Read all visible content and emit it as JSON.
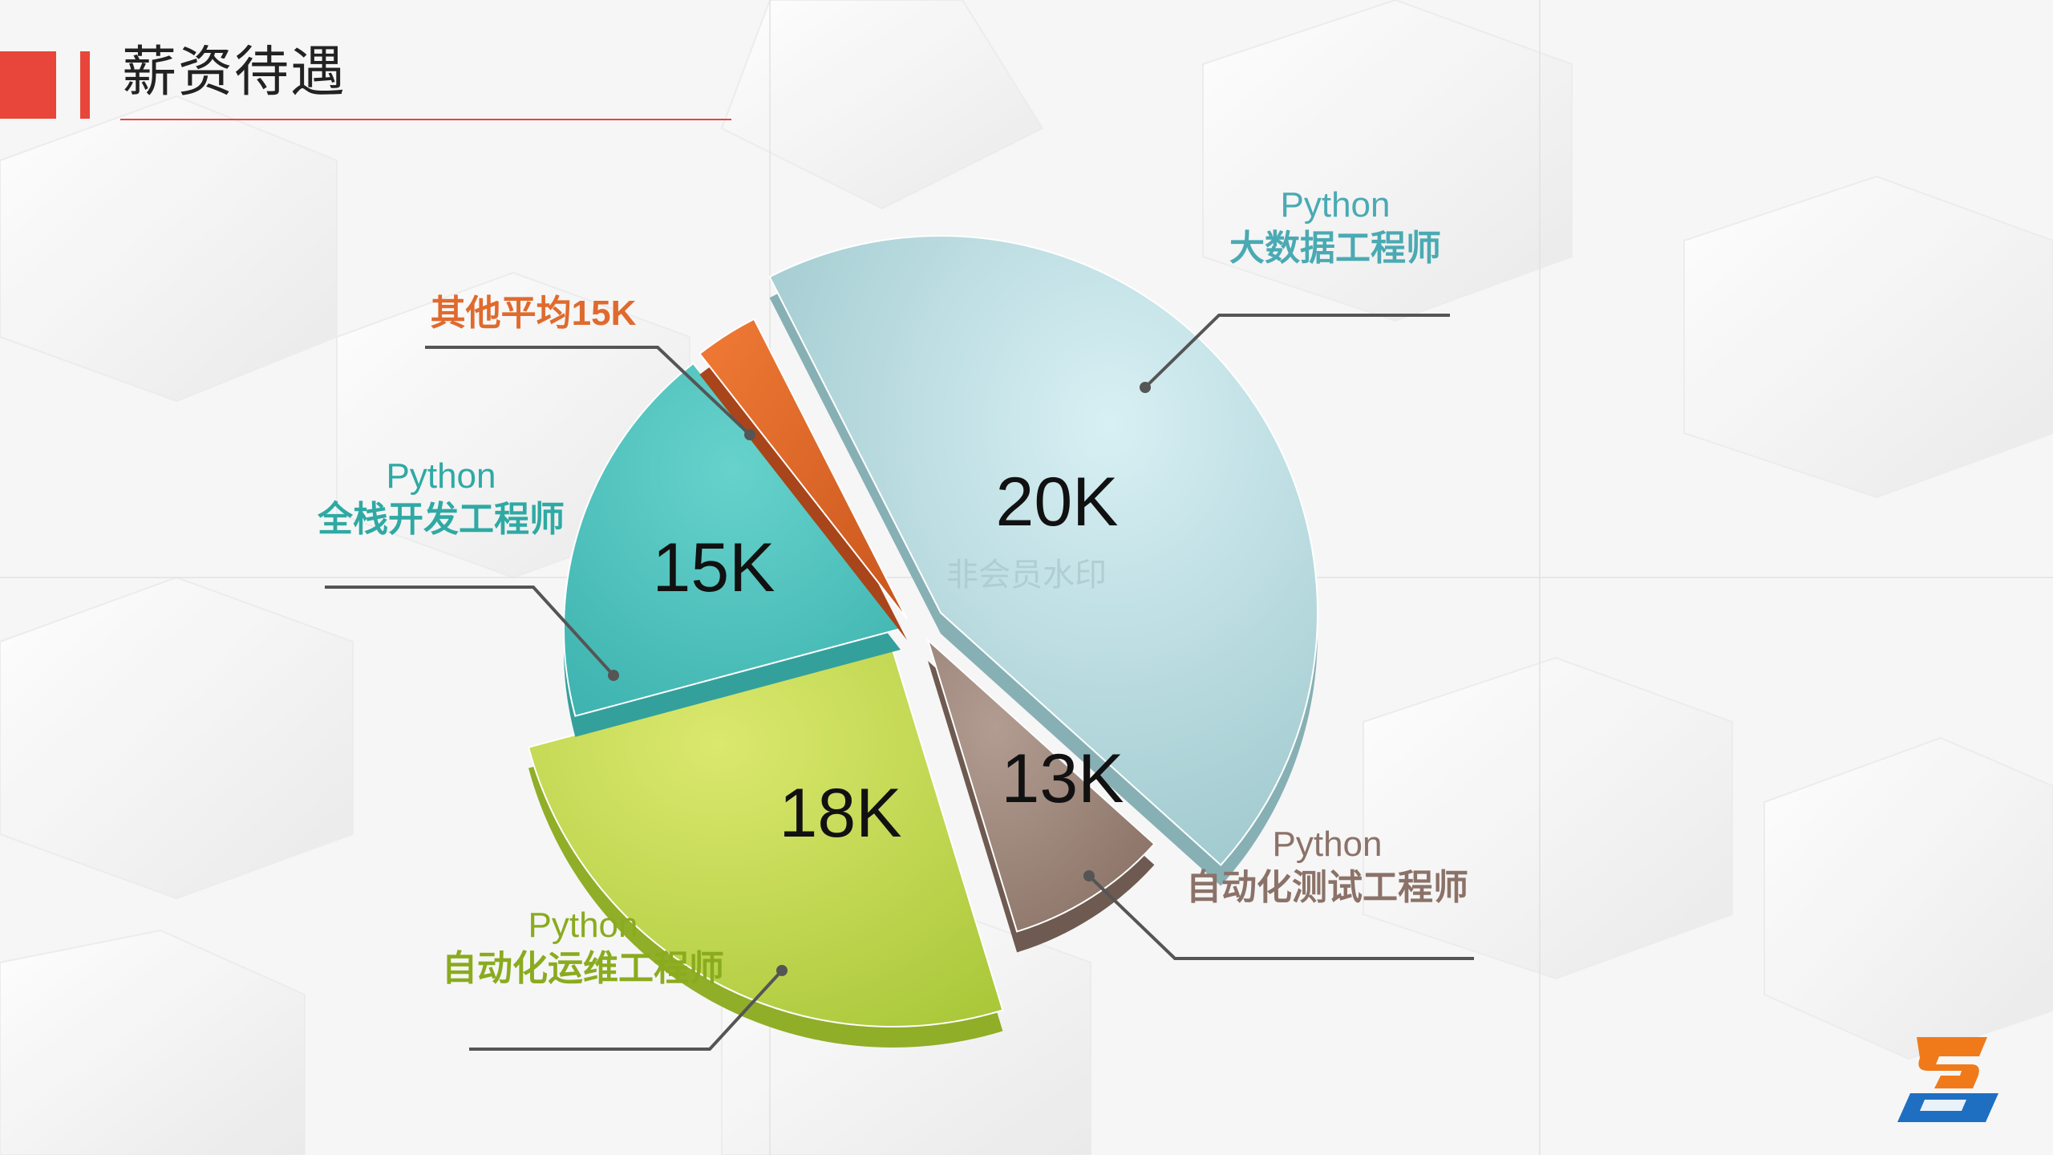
{
  "header": {
    "title": "薪资待遇"
  },
  "watermark": "非会员水印",
  "chart_data": {
    "type": "pie",
    "title": "",
    "slices": [
      {
        "line1": "Python",
        "line2": "大数据工程师",
        "value_label": "20K",
        "value": 20,
        "color": "#a9d4da"
      },
      {
        "line1": "Python",
        "line2": "自动化测试工程师",
        "value_label": "13K",
        "value": 13,
        "color": "#a08a7f"
      },
      {
        "line1": "Python",
        "line2": "自动化运维工程师",
        "value_label": "18K",
        "value": 18,
        "color": "#c2d94f"
      },
      {
        "line1": "Python",
        "line2": "全栈开发工程师",
        "value_label": "15K",
        "value": 15,
        "color": "#4ec2be"
      },
      {
        "line1": "",
        "line2": "其他平均15K",
        "value_label": "",
        "value": 15,
        "color": "#e06a2d"
      }
    ],
    "label_colors": [
      "#4aaab3",
      "#8b7268",
      "#8aab1e",
      "#2fa9a4",
      "#e06a2d"
    ]
  },
  "colors": {
    "accent": "#e8463a",
    "logo_orange": "#f07a1a",
    "logo_blue": "#1e6fc2"
  }
}
